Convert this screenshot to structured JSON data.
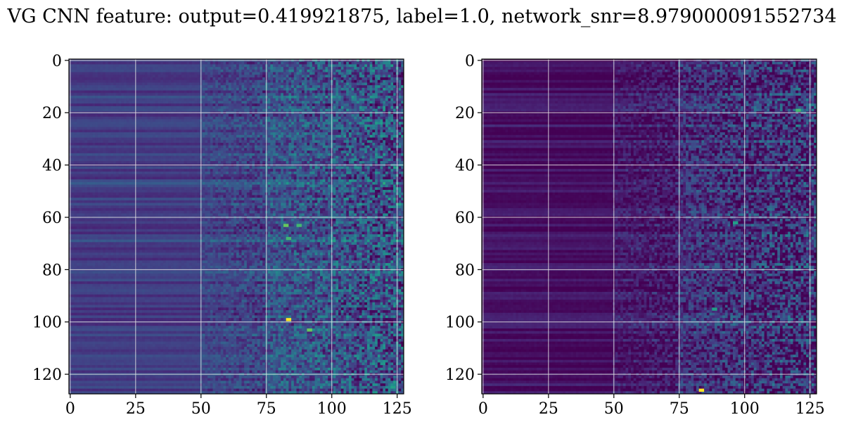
{
  "title": "VG CNN feature: output=0.419921875, label=1.0, network_snr=8.979000091552734",
  "chart_data": [
    {
      "type": "heatmap",
      "colormap": "viridis",
      "rows": 128,
      "cols": 128,
      "xlim": [
        -0.5,
        127.5
      ],
      "ylim": [
        127.5,
        -0.5
      ],
      "xticks": [
        0,
        25,
        50,
        75,
        100,
        125
      ],
      "yticks": [
        0,
        20,
        40,
        60,
        80,
        100,
        120
      ],
      "grid": true,
      "column_regions": [
        {
          "from": 0,
          "to": 25,
          "mean": 0.22
        },
        {
          "from": 25,
          "to": 50,
          "mean": 0.22
        },
        {
          "from": 50,
          "to": 75,
          "mean": 0.27
        },
        {
          "from": 75,
          "to": 128,
          "mean": 0.35
        }
      ],
      "hot_spots": [
        {
          "x": 83,
          "y": 99,
          "value": 1.0
        },
        {
          "x": 91,
          "y": 103,
          "value": 0.85
        },
        {
          "x": 82,
          "y": 63,
          "value": 0.85
        },
        {
          "x": 87,
          "y": 63,
          "value": 0.8
        },
        {
          "x": 83,
          "y": 68,
          "value": 0.8
        }
      ]
    },
    {
      "type": "heatmap",
      "colormap": "viridis",
      "rows": 128,
      "cols": 128,
      "xlim": [
        -0.5,
        127.5
      ],
      "ylim": [
        127.5,
        -0.5
      ],
      "xticks": [
        0,
        25,
        50,
        75,
        100,
        125
      ],
      "yticks": [
        0,
        20,
        40,
        60,
        80,
        100,
        120
      ],
      "grid": true,
      "column_regions": [
        {
          "from": 0,
          "to": 25,
          "mean": 0.06
        },
        {
          "from": 25,
          "to": 50,
          "mean": 0.05
        },
        {
          "from": 50,
          "to": 75,
          "mean": 0.1
        },
        {
          "from": 75,
          "to": 128,
          "mean": 0.2
        }
      ],
      "hot_spots": [
        {
          "x": 83,
          "y": 126,
          "value": 1.0
        },
        {
          "x": 120,
          "y": 19,
          "value": 0.8
        },
        {
          "x": 96,
          "y": 62,
          "value": 0.7
        },
        {
          "x": 88,
          "y": 95,
          "value": 0.7
        }
      ]
    }
  ]
}
